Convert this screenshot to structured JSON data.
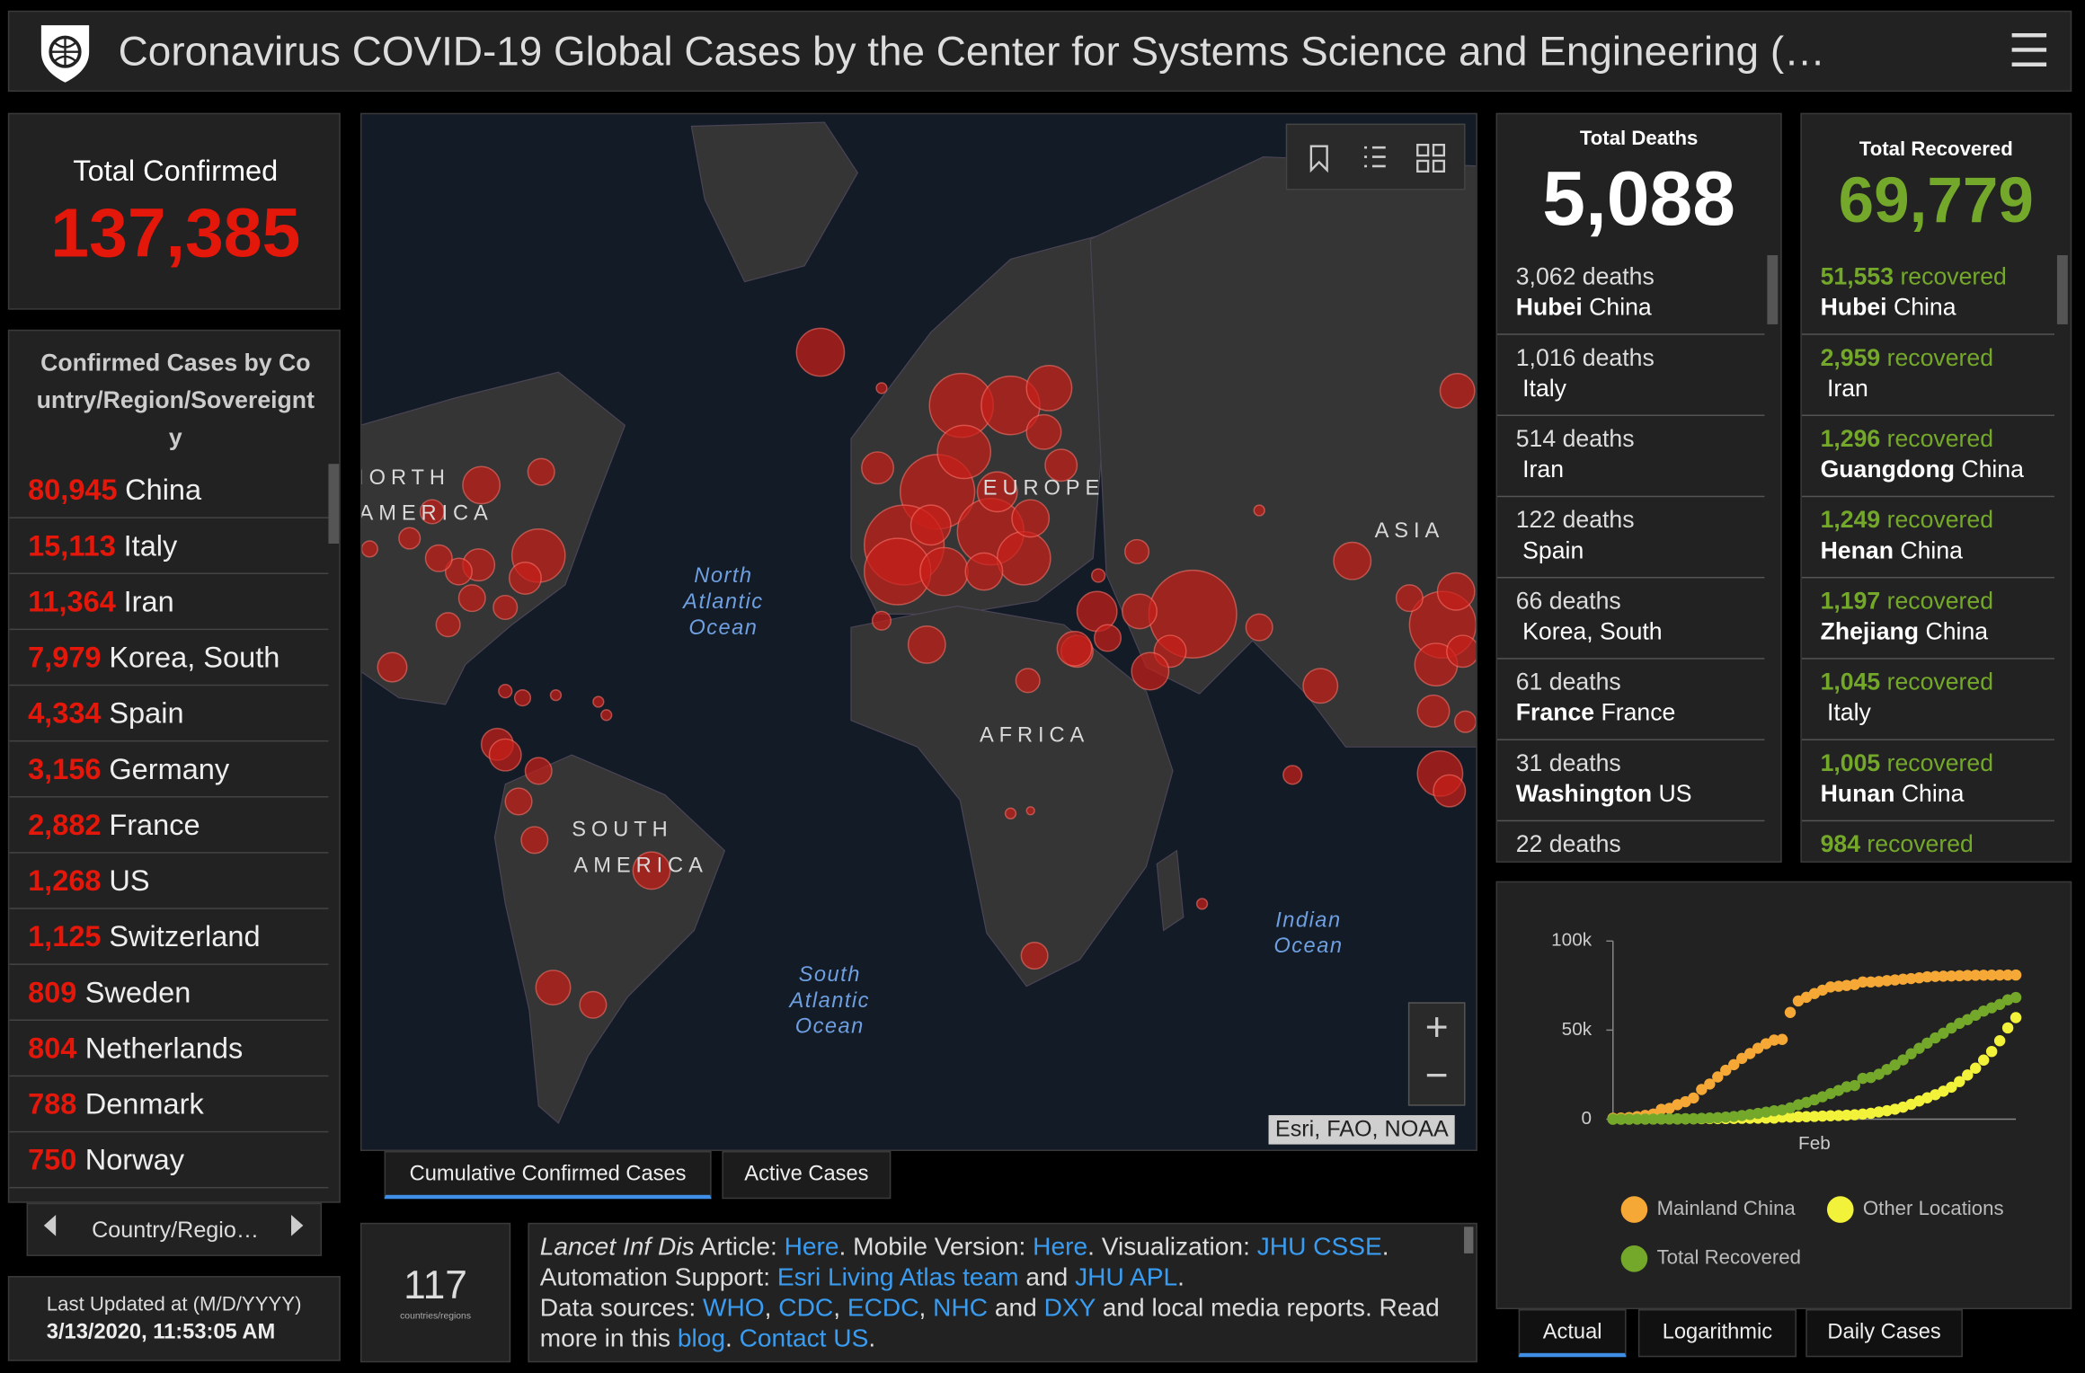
{
  "header": {
    "title": "Coronavirus COVID-19 Global Cases by the Center for Systems Science and Engineering (…"
  },
  "total_confirmed": {
    "label": "Total Confirmed",
    "value": "137,385"
  },
  "country_list": {
    "title": "Confirmed Cases by Country/Region/Sovereignty",
    "rows": [
      {
        "count": "80,945",
        "name": "China"
      },
      {
        "count": "15,113",
        "name": "Italy"
      },
      {
        "count": "11,364",
        "name": "Iran"
      },
      {
        "count": "7,979",
        "name": "Korea, South"
      },
      {
        "count": "4,334",
        "name": "Spain"
      },
      {
        "count": "3,156",
        "name": "Germany"
      },
      {
        "count": "2,882",
        "name": "France"
      },
      {
        "count": "1,268",
        "name": "US"
      },
      {
        "count": "1,125",
        "name": "Switzerland"
      },
      {
        "count": "809",
        "name": "Sweden"
      },
      {
        "count": "804",
        "name": "Netherlands"
      },
      {
        "count": "788",
        "name": "Denmark"
      },
      {
        "count": "750",
        "name": "Norway"
      }
    ],
    "nav": "Country/Regio…"
  },
  "last_updated": {
    "label": "Last Updated at (M/D/YYYY)",
    "value": "3/13/2020, 11:53:05 AM"
  },
  "map": {
    "labels": [
      "NORTH",
      "AMERICA",
      "EUROPE",
      "ASIA",
      "AFRICA",
      "SOUTH",
      "AMERICA"
    ],
    "oceans": [
      [
        "North",
        "Atlantic",
        "Ocean"
      ],
      [
        "South",
        "Atlantic",
        "Ocean"
      ],
      [
        "Indian",
        "Ocean"
      ]
    ],
    "attribution": "Esri, FAO, NOAA",
    "zoom_in": "+",
    "zoom_out": "−"
  },
  "map_tabs": [
    "Cumulative Confirmed Cases",
    "Active Cases"
  ],
  "countries_count": {
    "value": "117",
    "label": "countries/regions"
  },
  "info": {
    "lines": [
      [
        {
          "text": "Lancet Inf Dis",
          "style": "italic"
        },
        {
          "text": " Article: "
        },
        {
          "text": "Here",
          "style": "link"
        },
        {
          "text": ". Mobile Version: "
        },
        {
          "text": "Here",
          "style": "link"
        },
        {
          "text": ". Visualization: "
        },
        {
          "text": "JHU CSSE",
          "style": "link"
        },
        {
          "text": "."
        }
      ],
      [
        {
          "text": "Automation Support: "
        },
        {
          "text": "Esri Living Atlas team",
          "style": "link"
        },
        {
          "text": " and "
        },
        {
          "text": "JHU APL",
          "style": "link"
        },
        {
          "text": "."
        }
      ],
      [
        {
          "text": "Data sources: "
        },
        {
          "text": "WHO",
          "style": "link"
        },
        {
          "text": ", "
        },
        {
          "text": "CDC",
          "style": "link"
        },
        {
          "text": ", "
        },
        {
          "text": "ECDC",
          "style": "link"
        },
        {
          "text": ", "
        },
        {
          "text": "NHC",
          "style": "link"
        },
        {
          "text": " and "
        },
        {
          "text": "DXY",
          "style": "link"
        },
        {
          "text": " and local media reports. Read"
        }
      ],
      [
        {
          "text": "more in this "
        },
        {
          "text": "blog",
          "style": "link"
        },
        {
          "text": ". "
        },
        {
          "text": "Contact US",
          "style": "link"
        },
        {
          "text": "."
        }
      ]
    ]
  },
  "deaths": {
    "label": "Total Deaths",
    "value": "5,088",
    "rows": [
      {
        "count": "3,062",
        "unit": "deaths",
        "place": "Hubei",
        "country": "China"
      },
      {
        "count": "1,016",
        "unit": "deaths",
        "country": "Italy"
      },
      {
        "count": "514",
        "unit": "deaths",
        "country": "Iran"
      },
      {
        "count": "122",
        "unit": "deaths",
        "country": "Spain"
      },
      {
        "count": "66",
        "unit": "deaths",
        "country": "Korea, South"
      },
      {
        "count": "61",
        "unit": "deaths",
        "place": "France",
        "country": "France"
      },
      {
        "count": "31",
        "unit": "deaths",
        "place": "Washington",
        "country": "US"
      },
      {
        "count": "22",
        "unit": "deaths"
      }
    ]
  },
  "recovered": {
    "label": "Total Recovered",
    "value": "69,779",
    "rows": [
      {
        "count": "51,553",
        "unit": "recovered",
        "place": "Hubei",
        "country": "China"
      },
      {
        "count": "2,959",
        "unit": "recovered",
        "country": "Iran"
      },
      {
        "count": "1,296",
        "unit": "recovered",
        "place": "Guangdong",
        "country": "China"
      },
      {
        "count": "1,249",
        "unit": "recovered",
        "place": "Henan",
        "country": "China"
      },
      {
        "count": "1,197",
        "unit": "recovered",
        "place": "Zhejiang",
        "country": "China"
      },
      {
        "count": "1,045",
        "unit": "recovered",
        "country": "Italy"
      },
      {
        "count": "1,005",
        "unit": "recovered",
        "place": "Hunan",
        "country": "China"
      },
      {
        "count": "984",
        "unit": "recovered"
      }
    ]
  },
  "chart_tabs": [
    "Actual",
    "Logarithmic",
    "Daily Cases"
  ],
  "chart_data": {
    "type": "scatter",
    "categories": [
      null,
      null,
      null,
      null,
      null,
      null,
      null,
      null,
      null,
      null,
      null,
      null,
      null,
      null,
      null,
      null,
      null,
      null,
      null,
      null,
      null,
      null,
      null,
      null,
      null,
      "Feb",
      null,
      null,
      null,
      null,
      null,
      null,
      null,
      null,
      null,
      null,
      null,
      null,
      null,
      null,
      null,
      null,
      null,
      null,
      null,
      null,
      null,
      null,
      null,
      null,
      null
    ],
    "ylim": [
      0,
      100000
    ],
    "yticks": [
      0,
      {
        "value": 50000,
        "label": "50k"
      },
      {
        "value": 100000,
        "label": "100k"
      }
    ],
    "series": [
      {
        "name": "Mainland China",
        "color": "#f5a836",
        "values": [
          548,
          643,
          920,
          1406,
          2075,
          2877,
          5509,
          6087,
          8141,
          9802,
          11891,
          16630,
          19716,
          23707,
          27440,
          30587,
          34110,
          36814,
          39829,
          42354,
          44386,
          44759,
          59895,
          66358,
          68413,
          70513,
          72434,
          74211,
          74619,
          75077,
          75550,
          77001,
          77022,
          77241,
          77754,
          78166,
          78600,
          78928,
          79356,
          79932,
          80136,
          80261,
          80386,
          80537,
          80690,
          80770,
          80823,
          80860,
          80887,
          80921,
          80932
        ]
      },
      {
        "name": "Other Locations",
        "color": "#f2f23a",
        "values": [
          6,
          8,
          15,
          39,
          62,
          84,
          104,
          135,
          145,
          183,
          200,
          271,
          292,
          311,
          325,
          412,
          459,
          501,
          564,
          577,
          593,
          1148,
          1197,
          1322,
          1413,
          1546,
          1736,
          1878,
          2048,
          2224,
          2472,
          2838,
          3312,
          4049,
          4720,
          5586,
          6736,
          8327,
          10206,
          11974,
          13728,
          15699,
          17951,
          21091,
          24774,
          28619,
          33163,
          37981,
          44021,
          51227,
          57000
        ]
      },
      {
        "name": "Total Recovered",
        "color": "#74a82a",
        "values": [
          28,
          30,
          36,
          39,
          52,
          61,
          107,
          126,
          143,
          222,
          284,
          472,
          623,
          852,
          1124,
          1487,
          2011,
          2616,
          3244,
          3946,
          4683,
          5150,
          6295,
          8058,
          9395,
          10865,
          12583,
          14352,
          16121,
          18177,
          18890,
          22886,
          23394,
          25227,
          27905,
          30384,
          33277,
          36711,
          39782,
          42716,
          45602,
          48228,
          51170,
          53796,
          55865,
          58358,
          60695,
          62512,
          64404,
          67003,
          68324
        ]
      }
    ]
  }
}
